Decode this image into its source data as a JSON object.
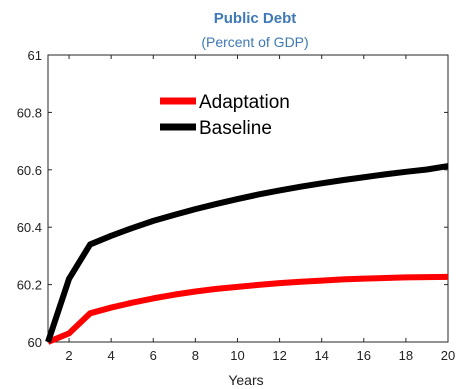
{
  "chart_data": {
    "type": "line",
    "title": "Public Debt",
    "subtitle": "(Percent of GDP)",
    "xlabel": "Years",
    "ylabel": "",
    "xlim": [
      1,
      20
    ],
    "ylim": [
      60,
      61
    ],
    "x_ticks": [
      2,
      4,
      6,
      8,
      10,
      12,
      14,
      16,
      18,
      20
    ],
    "y_ticks": [
      60,
      60.2,
      60.4,
      60.6,
      60.8,
      61
    ],
    "y_tick_labels": [
      "60",
      "60.2",
      "60.4",
      "60.6",
      "60.8",
      "61"
    ],
    "grid": false,
    "legend_position": "upper-left-inside",
    "x": [
      1,
      2,
      3,
      4,
      5,
      6,
      7,
      8,
      9,
      10,
      11,
      12,
      13,
      14,
      15,
      16,
      17,
      18,
      19,
      20
    ],
    "series": [
      {
        "name": "Adaptation",
        "color": "#ff0000",
        "values": [
          60.0,
          60.03,
          60.1,
          60.12,
          60.137,
          60.152,
          60.165,
          60.176,
          60.185,
          60.192,
          60.199,
          60.205,
          60.21,
          60.214,
          60.218,
          60.221,
          60.223,
          60.225,
          60.226,
          60.227
        ]
      },
      {
        "name": "Baseline",
        "color": "#000000",
        "values": [
          60.0,
          60.22,
          60.34,
          60.37,
          60.397,
          60.422,
          60.443,
          60.463,
          60.481,
          60.498,
          60.514,
          60.528,
          60.541,
          60.553,
          60.564,
          60.574,
          60.584,
          60.593,
          60.601,
          60.613
        ]
      }
    ]
  }
}
